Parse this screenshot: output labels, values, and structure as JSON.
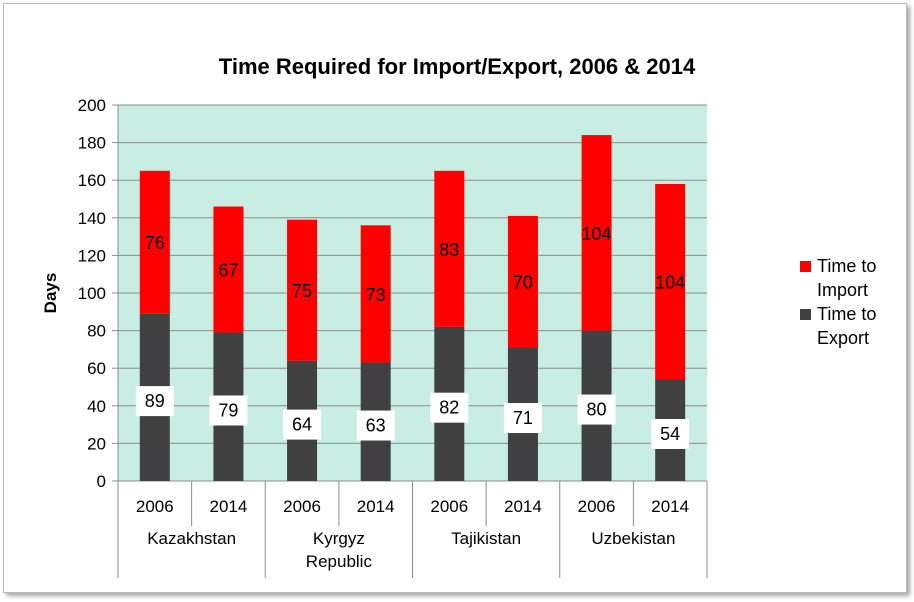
{
  "chart_data": {
    "type": "bar",
    "stacked": true,
    "title": "Time Required for Import/Export, 2006 & 2014",
    "ylabel": "Days",
    "ylim": [
      0,
      200
    ],
    "yticks": [
      0,
      20,
      40,
      60,
      80,
      100,
      120,
      140,
      160,
      180,
      200
    ],
    "groups": [
      {
        "label": "Kazakhstan",
        "lines": [
          "Kazakhstan"
        ]
      },
      {
        "label": "Kyrgyz Republic",
        "lines": [
          "Kyrgyz",
          "Republic"
        ]
      },
      {
        "label": "Tajikistan",
        "lines": [
          "Tajikistan"
        ]
      },
      {
        "label": "Uzbekistan",
        "lines": [
          "Uzbekistan"
        ]
      }
    ],
    "categories": [
      "2006",
      "2014",
      "2006",
      "2014",
      "2006",
      "2014",
      "2006",
      "2014"
    ],
    "series": [
      {
        "name": "Time to Export",
        "legend_lines": [
          "Time to",
          "Export"
        ],
        "color": "#404040",
        "values": [
          89,
          79,
          64,
          63,
          82,
          71,
          80,
          54
        ]
      },
      {
        "name": "Time to Import",
        "legend_lines": [
          "Time to",
          "Import"
        ],
        "color": "#ff0000",
        "values": [
          76,
          67,
          75,
          73,
          83,
          70,
          104,
          104
        ]
      }
    ],
    "plot_background": "#c8ede2",
    "grid": true,
    "legend": "right"
  }
}
